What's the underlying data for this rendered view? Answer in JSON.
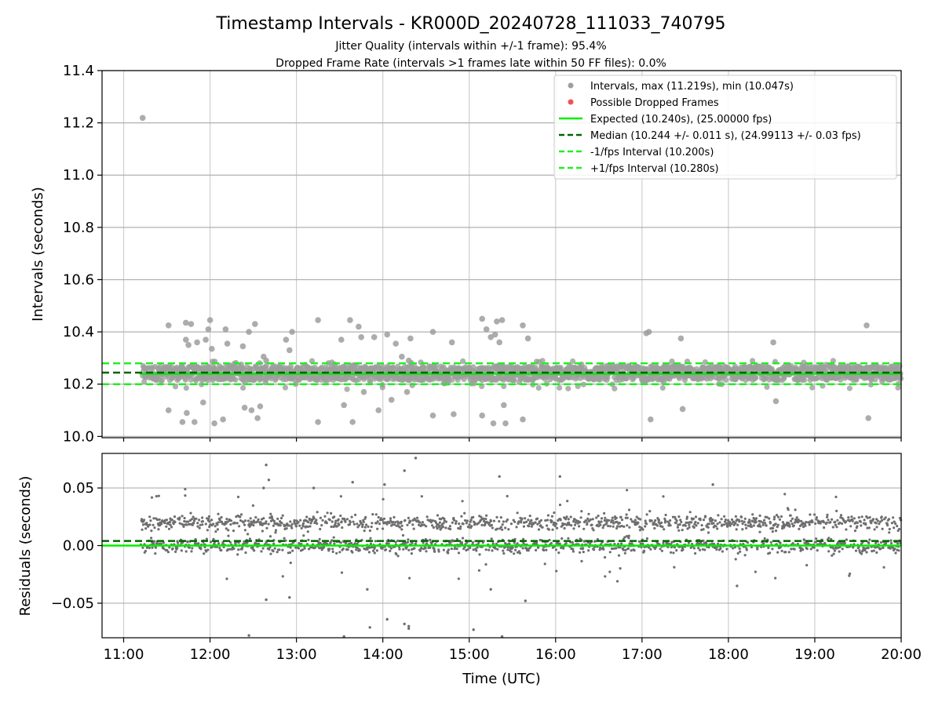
{
  "chart_data": [
    {
      "type": "scatter",
      "title": "Timestamp Intervals - KR000D_20240728_111033_740795",
      "subtitles": [
        "Jitter Quality (intervals within +/-1 frame): 95.4%",
        "Dropped Frame Rate (intervals >1 frames late within 50 FF files): 0.0%"
      ],
      "xlabel": "",
      "ylabel": "Intervals (seconds)",
      "x_unit": "time (UTC, hour of day)",
      "xlim": [
        10.75,
        20.0
      ],
      "ylim": [
        9.995,
        11.4
      ],
      "yticks": [
        10.0,
        10.2,
        10.4,
        10.6,
        10.8,
        11.0,
        11.2,
        11.4
      ],
      "ytick_labels": [
        "10.0",
        "10.2",
        "10.4",
        "10.6",
        "10.8",
        "11.0",
        "11.2",
        "11.4"
      ],
      "grid": true,
      "legend_position": "top-right",
      "legend": [
        "Intervals, max (11.219s), min (10.047s)",
        "Possible Dropped Frames",
        "Expected (10.240s), (25.00000 fps)",
        "Median (10.244 +/- 0.011 s), (24.99113 +/- 0.03 fps)",
        "-1/fps Interval (10.200s)",
        "+1/fps Interval (10.280s)"
      ],
      "reference_lines": {
        "expected": 10.24,
        "median": 10.244,
        "minus_one_fps": 10.2,
        "plus_one_fps": 10.28
      },
      "colors": {
        "intervals": "#9e9e9e",
        "dropped": "#ef5350",
        "expected": "#00ee00",
        "median": "#006400",
        "fps_bounds": "#22ee22"
      },
      "band_summary": {
        "x_start": 11.22,
        "x_end": 20.0,
        "y_min": 10.215,
        "y_max": 10.27
      },
      "outliers": {
        "x": [
          11.22,
          11.52,
          11.52,
          11.68,
          11.72,
          11.72,
          11.73,
          11.75,
          11.78,
          11.82,
          11.85,
          11.92,
          11.95,
          11.98,
          12.0,
          12.02,
          12.05,
          12.15,
          12.18,
          12.2,
          12.38,
          12.4,
          12.45,
          12.48,
          12.52,
          12.55,
          12.58,
          12.62,
          12.65,
          12.88,
          12.92,
          12.95,
          13.25,
          13.25,
          13.52,
          13.55,
          13.62,
          13.65,
          13.72,
          13.75,
          13.78,
          13.9,
          13.95,
          14.05,
          14.1,
          14.15,
          14.22,
          14.28,
          14.3,
          14.32,
          14.58,
          14.58,
          14.8,
          14.82,
          15.15,
          15.15,
          15.2,
          15.25,
          15.28,
          15.3,
          15.32,
          15.35,
          15.38,
          15.4,
          15.42,
          15.62,
          15.62,
          15.68,
          17.05,
          17.08,
          17.1,
          17.45,
          17.47,
          18.52,
          18.55,
          19.6,
          19.62
        ],
        "y": [
          11.219,
          10.425,
          10.1,
          10.055,
          10.435,
          10.37,
          10.09,
          10.35,
          10.43,
          10.055,
          10.36,
          10.13,
          10.37,
          10.41,
          10.445,
          10.335,
          10.05,
          10.065,
          10.41,
          10.355,
          10.345,
          10.11,
          10.4,
          10.1,
          10.43,
          10.07,
          10.115,
          10.305,
          10.29,
          10.37,
          10.33,
          10.4,
          10.445,
          10.055,
          10.37,
          10.12,
          10.445,
          10.055,
          10.42,
          10.38,
          10.17,
          10.38,
          10.1,
          10.39,
          10.14,
          10.355,
          10.305,
          10.17,
          10.29,
          10.375,
          10.4,
          10.08,
          10.36,
          10.085,
          10.45,
          10.08,
          10.41,
          10.38,
          10.05,
          10.39,
          10.44,
          10.36,
          10.445,
          10.12,
          10.05,
          10.425,
          10.065,
          10.375,
          10.395,
          10.4,
          10.065,
          10.375,
          10.105,
          10.36,
          10.135,
          10.425,
          10.07
        ]
      }
    },
    {
      "type": "scatter",
      "xlabel": "Time (UTC)",
      "ylabel": "Residuals (seconds)",
      "xlim": [
        10.75,
        20.0
      ],
      "ylim": [
        -0.08,
        0.08
      ],
      "xticks": [
        11,
        12,
        13,
        14,
        15,
        16,
        17,
        18,
        19,
        20
      ],
      "xtick_labels": [
        "11:00",
        "12:00",
        "13:00",
        "14:00",
        "15:00",
        "16:00",
        "17:00",
        "18:00",
        "19:00",
        "20:00"
      ],
      "yticks": [
        -0.05,
        0.0,
        0.05
      ],
      "ytick_labels": [
        "−0.05",
        "0.00",
        "0.05"
      ],
      "grid": true,
      "reference_lines": {
        "zero": 0.0,
        "median_offset": 0.004
      },
      "colors": {
        "points": "#6e6e6e",
        "zero_line": "#00ee00",
        "median_line": "#006400"
      },
      "band_summary": {
        "x_start": 11.2,
        "x_end": 20.0,
        "upper_band": 0.02,
        "lower_band": 0.0,
        "spread": 0.012
      },
      "outliers": {
        "x": [
          12.45,
          12.62,
          12.65,
          12.68,
          12.65,
          12.92,
          13.2,
          13.55,
          13.65,
          13.82,
          13.85,
          14.02,
          14.05,
          14.25,
          14.3,
          14.38,
          14.25,
          14.3,
          15.05,
          15.25,
          15.35,
          15.38,
          15.65,
          16.05,
          17.82,
          18.1
        ],
        "y": [
          -0.078,
          0.05,
          0.07,
          0.057,
          -0.047,
          -0.045,
          0.05,
          -0.08,
          0.055,
          -0.038,
          -0.071,
          0.053,
          -0.064,
          0.065,
          -0.07,
          0.076,
          -0.068,
          -0.072,
          -0.073,
          -0.038,
          0.06,
          -0.08,
          -0.048,
          0.06,
          0.053,
          -0.035
        ]
      }
    }
  ]
}
